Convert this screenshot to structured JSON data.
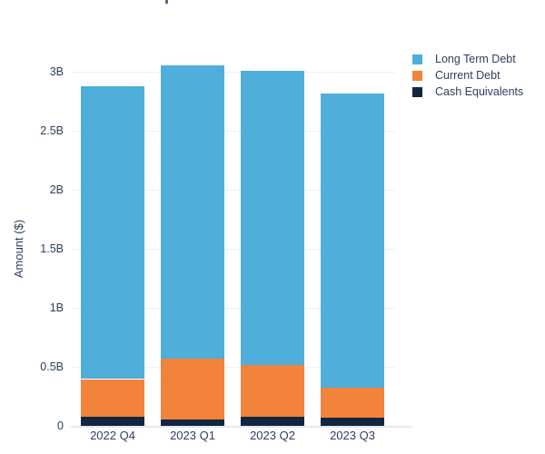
{
  "colors": {
    "text": "#2A3F5F",
    "background": "#FFFFFF",
    "gridline": "#EBF0F8",
    "zeroline": "#E2E9F4",
    "title_fragment": "#56688E"
  },
  "chart_data": {
    "type": "bar",
    "stacked": true,
    "categories": [
      "2022 Q4",
      "2023 Q1",
      "2023 Q2",
      "2023 Q3"
    ],
    "series": [
      {
        "name": "Long Term Debt",
        "color": "#4FAEDA",
        "values": [
          2.48,
          2.49,
          2.49,
          2.49
        ]
      },
      {
        "name": "Current Debt",
        "color": "#F2833B",
        "values": [
          0.32,
          0.51,
          0.44,
          0.26
        ]
      },
      {
        "name": "Cash Equivalents",
        "color": "#12263F",
        "values": [
          0.08,
          0.06,
          0.08,
          0.07
        ]
      }
    ],
    "stack_totals": [
      2.88,
      3.06,
      3.01,
      2.82
    ],
    "title": "",
    "xlabel": "",
    "ylabel": "Amount ($)",
    "yticks": [
      {
        "value": 0,
        "label": "0"
      },
      {
        "value": 0.5,
        "label": "0.5B"
      },
      {
        "value": 1,
        "label": "1B"
      },
      {
        "value": 1.5,
        "label": "1.5B"
      },
      {
        "value": 2,
        "label": "2B"
      },
      {
        "value": 2.5,
        "label": "2.5B"
      },
      {
        "value": 3,
        "label": "3B"
      }
    ],
    "ylim": [
      0,
      3.2
    ],
    "grid": true,
    "legend_position": "top-right-outside"
  }
}
